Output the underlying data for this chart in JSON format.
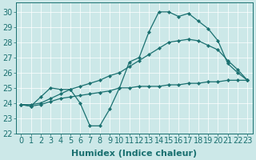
{
  "xlabel": "Humidex (Indice chaleur)",
  "background_color": "#cce8e8",
  "line_color": "#1a7070",
  "xlim": [
    -0.5,
    23.5
  ],
  "ylim": [
    22,
    30.6
  ],
  "xticks": [
    0,
    1,
    2,
    3,
    4,
    5,
    6,
    7,
    8,
    9,
    10,
    11,
    12,
    13,
    14,
    15,
    16,
    17,
    18,
    19,
    20,
    21,
    22,
    23
  ],
  "yticks": [
    22,
    23,
    24,
    25,
    26,
    27,
    28,
    29,
    30
  ],
  "series_main_x": [
    0,
    1,
    2,
    3,
    4,
    5,
    6,
    7,
    8,
    9,
    10,
    11,
    12,
    13,
    14,
    15,
    16,
    17,
    18,
    19,
    20,
    21,
    22,
    23
  ],
  "series_main_y": [
    23.9,
    23.8,
    24.4,
    25.0,
    24.9,
    24.9,
    24.0,
    22.5,
    22.5,
    23.6,
    25.0,
    26.7,
    27.0,
    28.7,
    30.0,
    30.0,
    29.7,
    29.9,
    29.4,
    28.9,
    28.1,
    26.6,
    26.0,
    25.5
  ],
  "series_flat_x": [
    0,
    1,
    2,
    3,
    4,
    5,
    6,
    7,
    8,
    9,
    10,
    11,
    12,
    13,
    14,
    15,
    16,
    17,
    18,
    19,
    20,
    21,
    22,
    23
  ],
  "series_flat_y": [
    23.9,
    23.8,
    23.9,
    24.1,
    24.3,
    24.4,
    24.5,
    24.6,
    24.7,
    24.8,
    25.0,
    25.0,
    25.1,
    25.1,
    25.1,
    25.2,
    25.2,
    25.3,
    25.3,
    25.4,
    25.4,
    25.5,
    25.5,
    25.5
  ],
  "series_trend_x": [
    0,
    1,
    2,
    3,
    4,
    5,
    6,
    7,
    8,
    9,
    10,
    11,
    12,
    13,
    14,
    15,
    16,
    17,
    18,
    19,
    20,
    21,
    22,
    23
  ],
  "series_trend_y": [
    23.9,
    23.9,
    24.0,
    24.3,
    24.6,
    24.9,
    25.1,
    25.3,
    25.5,
    25.8,
    26.0,
    26.4,
    26.8,
    27.2,
    27.6,
    28.0,
    28.1,
    28.2,
    28.1,
    27.8,
    27.5,
    26.8,
    26.2,
    25.5
  ],
  "xlabel_fontsize": 8,
  "tick_fontsize": 7
}
